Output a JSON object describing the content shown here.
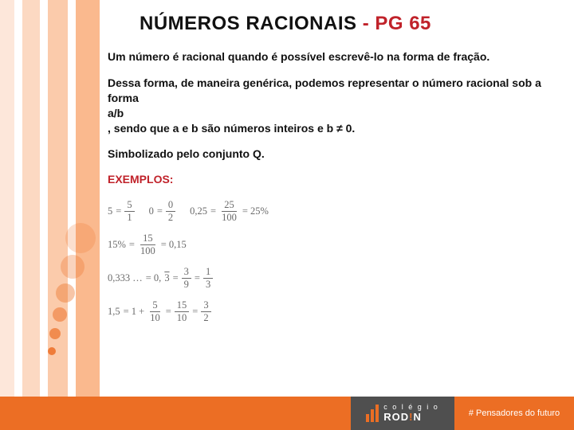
{
  "title": {
    "main": "NÚMEROS RACIONAIS  ",
    "suffix": "- PG 65"
  },
  "paragraphs": {
    "p1": "Um número é racional quando é possível escrevê-lo na forma de fração.",
    "p2_l1": "Dessa forma, de maneira genérica, podemos representar o número racional sob a forma",
    "p2_l2": "a/b",
    "p2_l3": ", sendo que a e b são números inteiros e b ≠ 0.",
    "p3": "Simbolizado pelo conjunto Q.",
    "examples_label": "EXEMPLOS:"
  },
  "math": {
    "row1": {
      "eq1": {
        "lhs": "5",
        "op": "=",
        "num": "5",
        "den": "1"
      },
      "eq2": {
        "lhs": "0",
        "op": "=",
        "num": "0",
        "den": "2"
      },
      "eq3": {
        "lhs": "0,25",
        "op": "=",
        "num": "25",
        "den": "100",
        "tail": "= 25%"
      }
    },
    "row2": {
      "eq1": {
        "lhs": "15%",
        "op": "=",
        "num": "15",
        "den": "100",
        "tail": "= 0,15"
      }
    },
    "row3": {
      "eq1": {
        "lhs": "0,333 …",
        "op": "= 0,",
        "overline": "3",
        "mid": " = ",
        "num1": "3",
        "den1": "9",
        "mid2": " = ",
        "num2": "1",
        "den2": "3"
      }
    },
    "row4": {
      "eq1": {
        "lhs": "1,5",
        "op": "= 1 + ",
        "num1": "5",
        "den1": "10",
        "mid": " = ",
        "num2": "15",
        "den2": "10",
        "mid2": " = ",
        "num3": "3",
        "den3": "2"
      }
    }
  },
  "footer": {
    "logo_top": "c o l é g i o",
    "logo_brand_pre": "ROD",
    "logo_brand_ex": "!",
    "logo_brand_post": "N",
    "tagline": "# Pensadores do futuro"
  },
  "colors": {
    "accent": "#ec6e24",
    "title_suffix": "#c0222a",
    "footer_gray": "#4f4f4f"
  }
}
